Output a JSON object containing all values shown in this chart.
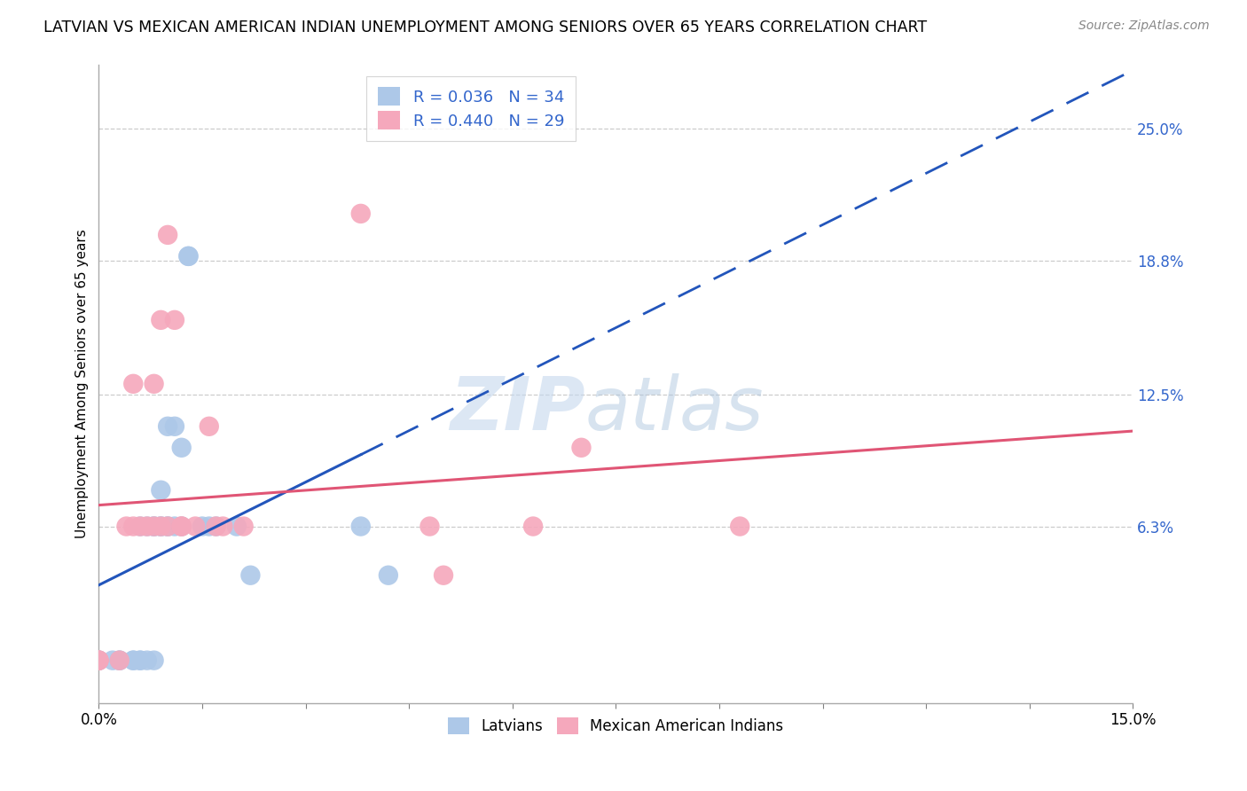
{
  "title": "LATVIAN VS MEXICAN AMERICAN INDIAN UNEMPLOYMENT AMONG SENIORS OVER 65 YEARS CORRELATION CHART",
  "source": "Source: ZipAtlas.com",
  "ylabel": "Unemployment Among Seniors over 65 years",
  "ytick_labels": [
    "25.0%",
    "18.8%",
    "12.5%",
    "6.3%"
  ],
  "ytick_values": [
    0.25,
    0.188,
    0.125,
    0.063
  ],
  "xlim": [
    0.0,
    0.15
  ],
  "ylim": [
    -0.02,
    0.28
  ],
  "latvian_R": 0.036,
  "latvian_N": 34,
  "mexican_R": 0.44,
  "mexican_N": 29,
  "latvian_color": "#adc8e8",
  "latvian_line_color": "#2255bb",
  "mexican_color": "#f5a8bc",
  "mexican_line_color": "#e05575",
  "watermark_zip": "ZIP",
  "watermark_atlas": "atlas",
  "latvian_points_x": [
    0.0,
    0.0,
    0.002,
    0.003,
    0.003,
    0.005,
    0.005,
    0.006,
    0.006,
    0.006,
    0.007,
    0.007,
    0.008,
    0.008,
    0.008,
    0.009,
    0.009,
    0.009,
    0.01,
    0.01,
    0.01,
    0.011,
    0.011,
    0.012,
    0.012,
    0.013,
    0.013,
    0.015,
    0.016,
    0.017,
    0.02,
    0.022,
    0.038,
    0.042
  ],
  "latvian_points_y": [
    0.0,
    0.0,
    0.0,
    0.0,
    0.0,
    0.0,
    0.0,
    0.0,
    0.0,
    0.063,
    0.0,
    0.063,
    0.0,
    0.063,
    0.063,
    0.063,
    0.063,
    0.08,
    0.063,
    0.063,
    0.11,
    0.063,
    0.11,
    0.063,
    0.1,
    0.19,
    0.19,
    0.063,
    0.063,
    0.063,
    0.063,
    0.04,
    0.063,
    0.04
  ],
  "mexican_points_x": [
    0.0,
    0.0,
    0.0,
    0.003,
    0.004,
    0.005,
    0.005,
    0.006,
    0.007,
    0.008,
    0.008,
    0.009,
    0.009,
    0.01,
    0.01,
    0.011,
    0.012,
    0.012,
    0.014,
    0.016,
    0.017,
    0.018,
    0.021,
    0.038,
    0.048,
    0.05,
    0.063,
    0.07,
    0.093
  ],
  "mexican_points_y": [
    0.0,
    0.0,
    0.0,
    0.0,
    0.063,
    0.063,
    0.13,
    0.063,
    0.063,
    0.13,
    0.063,
    0.063,
    0.16,
    0.063,
    0.2,
    0.16,
    0.063,
    0.063,
    0.063,
    0.11,
    0.063,
    0.063,
    0.063,
    0.21,
    0.063,
    0.04,
    0.063,
    0.1,
    0.063
  ],
  "x_ticks": [
    0.0,
    0.015,
    0.03,
    0.045,
    0.06,
    0.075,
    0.09,
    0.105,
    0.12,
    0.135,
    0.15
  ]
}
